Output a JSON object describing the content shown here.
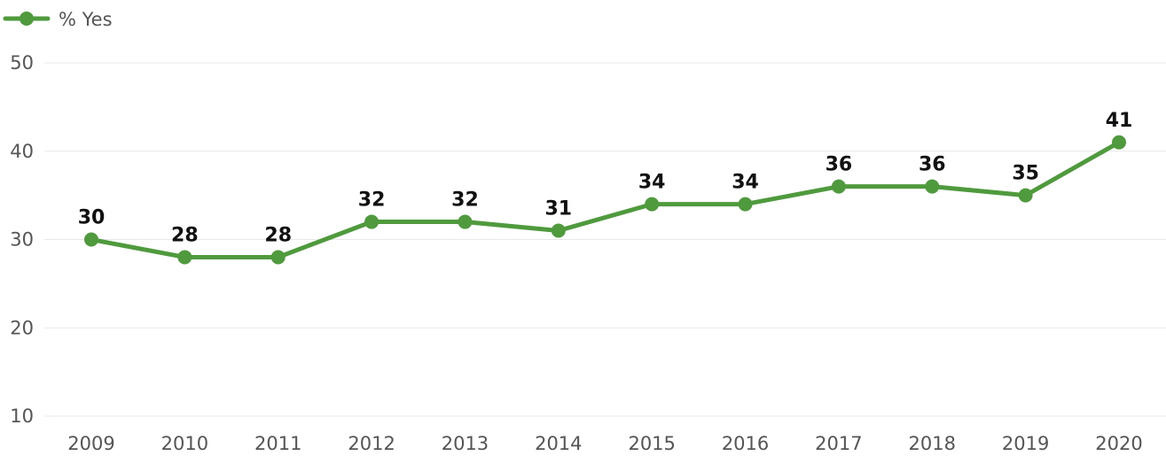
{
  "chart_data": {
    "type": "line",
    "categories": [
      "2009",
      "2010",
      "2011",
      "2012",
      "2013",
      "2014",
      "2015",
      "2016",
      "2017",
      "2018",
      "2019",
      "2020"
    ],
    "series": [
      {
        "name": "% Yes",
        "values": [
          30,
          28,
          28,
          32,
          32,
          31,
          34,
          34,
          36,
          36,
          35,
          41
        ],
        "color": "#4e9a3d"
      }
    ],
    "title": "",
    "xlabel": "",
    "ylabel": "",
    "ylim": [
      10,
      50
    ],
    "yticks": [
      "10",
      "20",
      "30",
      "40",
      "50"
    ],
    "grid": true,
    "legend": "top-left"
  }
}
